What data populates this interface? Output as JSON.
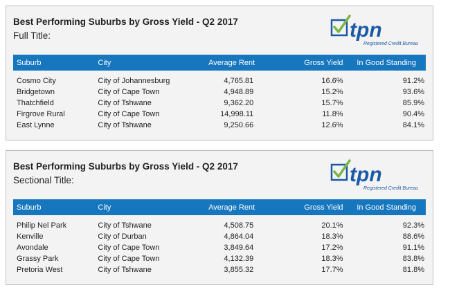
{
  "logo": {
    "text": "tpn",
    "tagline": "Registered Credit Bureau"
  },
  "headers": [
    "Suburb",
    "City",
    "Average Rent",
    "Gross Yield",
    "In Good Standing"
  ],
  "tables": [
    {
      "title": "Best Performing Suburbs by Gross Yield - Q2 2017",
      "subtitle": "Full Title:",
      "rows": [
        [
          "Cosmo City",
          "City of Johannesburg",
          "4,765.81",
          "16.6%",
          "91.2%"
        ],
        [
          "Bridgetown",
          "City of Cape Town",
          "4,948.89",
          "15.2%",
          "93.6%"
        ],
        [
          "Thatchfield",
          "City of Tshwane",
          "9,362.20",
          "15.7%",
          "85.9%"
        ],
        [
          "Firgrove Rural",
          "City of Cape Town",
          "14,998.11",
          "11.8%",
          "90.4%"
        ],
        [
          "East Lynne",
          "City of Tshwane",
          "9,250.66",
          "12.6%",
          "84.1%"
        ]
      ]
    },
    {
      "title": "Best Performing Suburbs by Gross Yield - Q2 2017",
      "subtitle": "Sectional Title:",
      "rows": [
        [
          "Philip Nel Park",
          "City of Tshwane",
          "4,508.75",
          "20.1%",
          "92.3%"
        ],
        [
          "Kenville",
          "City of Durban",
          "4,864.04",
          "18.3%",
          "88.6%"
        ],
        [
          "Avondale",
          "City of Cape Town",
          "3,849.64",
          "17.2%",
          "91.1%"
        ],
        [
          "Grassy Park",
          "City of Cape Town",
          "4,132.39",
          "18.3%",
          "83.8%"
        ],
        [
          "Pretoria West",
          "City of Tshwane",
          "3,855.32",
          "17.7%",
          "81.8%"
        ]
      ]
    }
  ],
  "colors": {
    "header_bg": "#1677bf",
    "logo_blue": "#1c5aa6",
    "check_green": "#7ab642"
  }
}
